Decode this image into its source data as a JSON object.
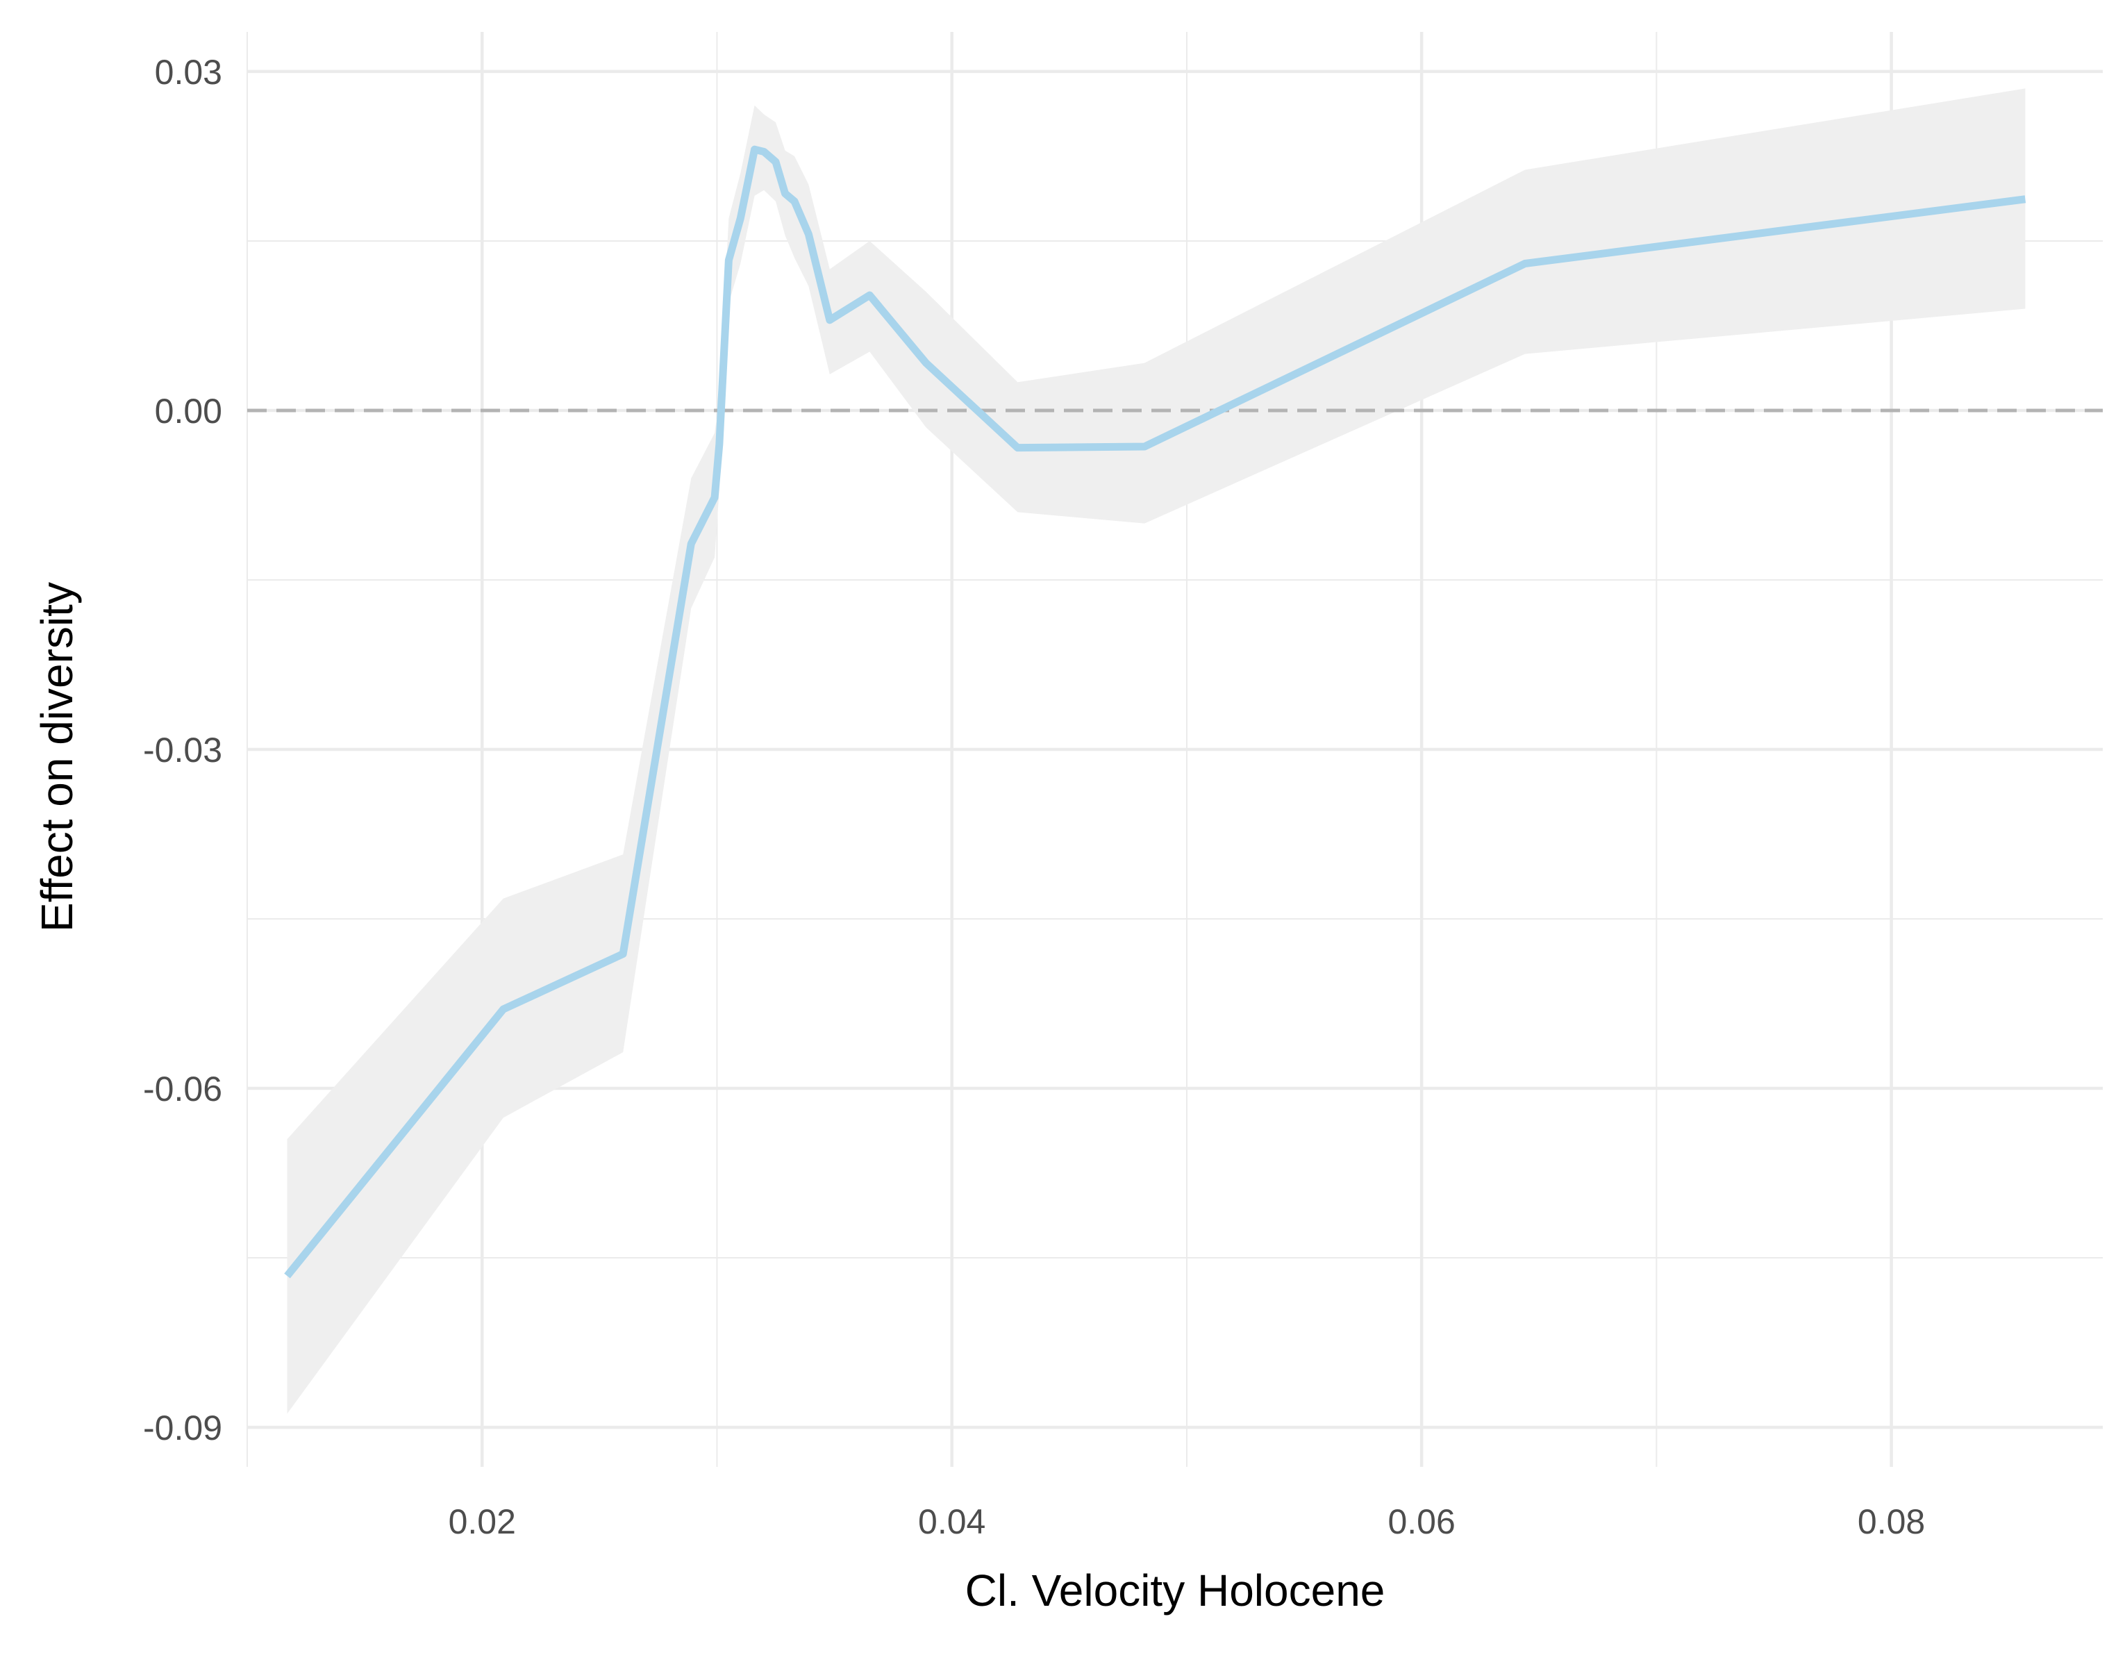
{
  "chart_data": {
    "type": "line",
    "title": "",
    "xlabel": "Cl. Velocity Holocene",
    "ylabel": "Effect on diversity",
    "xlim": [
      0.01,
      0.089
    ],
    "ylim": [
      -0.0935,
      0.0335
    ],
    "x_ticks": [
      {
        "value": 0.02,
        "label": "0.02"
      },
      {
        "value": 0.04,
        "label": "0.04"
      },
      {
        "value": 0.06,
        "label": "0.06"
      },
      {
        "value": 0.08,
        "label": "0.08"
      }
    ],
    "y_ticks": [
      {
        "value": 0.03,
        "label": "0.03"
      },
      {
        "value": 0.0,
        "label": "0.00"
      },
      {
        "value": -0.03,
        "label": "-0.03"
      },
      {
        "value": -0.06,
        "label": "-0.06"
      },
      {
        "value": -0.09,
        "label": "-0.09"
      }
    ],
    "x_minor": [
      0.01,
      0.03,
      0.05,
      0.07
    ],
    "y_minor": [
      0.015,
      -0.015,
      -0.045,
      -0.075
    ],
    "grid": true,
    "reference_line": {
      "y": 0.0,
      "style": "dashed",
      "color": "#b3b3b3"
    },
    "series": [
      {
        "color": "#a8d4ec",
        "band_color": "#efefef",
        "x": [
          0.0117,
          0.0209,
          0.026,
          0.0289,
          0.0299,
          0.0301,
          0.0305,
          0.031,
          0.0316,
          0.032,
          0.0325,
          0.0329,
          0.0333,
          0.0339,
          0.0348,
          0.0365,
          0.0389,
          0.0428,
          0.0482,
          0.0644,
          0.0857
        ],
        "y": [
          -0.0766,
          -0.053,
          -0.0481,
          -0.0118,
          -0.0077,
          -0.003,
          0.0133,
          0.017,
          0.0231,
          0.0229,
          0.022,
          0.0192,
          0.0185,
          0.0156,
          0.008,
          0.0102,
          0.0042,
          -0.0033,
          -0.0032,
          0.013,
          0.0187
        ],
        "lower": [
          -0.0888,
          -0.0626,
          -0.0568,
          -0.0175,
          -0.013,
          -0.007,
          0.0095,
          0.013,
          0.019,
          0.0195,
          0.0185,
          0.0155,
          0.0135,
          0.011,
          0.0032,
          0.0052,
          -0.0015,
          -0.009,
          -0.01,
          0.005,
          0.009
        ],
        "upper": [
          -0.0645,
          -0.0432,
          -0.0393,
          -0.006,
          -0.002,
          0.001,
          0.017,
          0.021,
          0.027,
          0.0262,
          0.0255,
          0.023,
          0.0225,
          0.02,
          0.0125,
          0.015,
          0.0105,
          0.0025,
          0.0042,
          0.0213,
          0.0285
        ]
      }
    ]
  }
}
